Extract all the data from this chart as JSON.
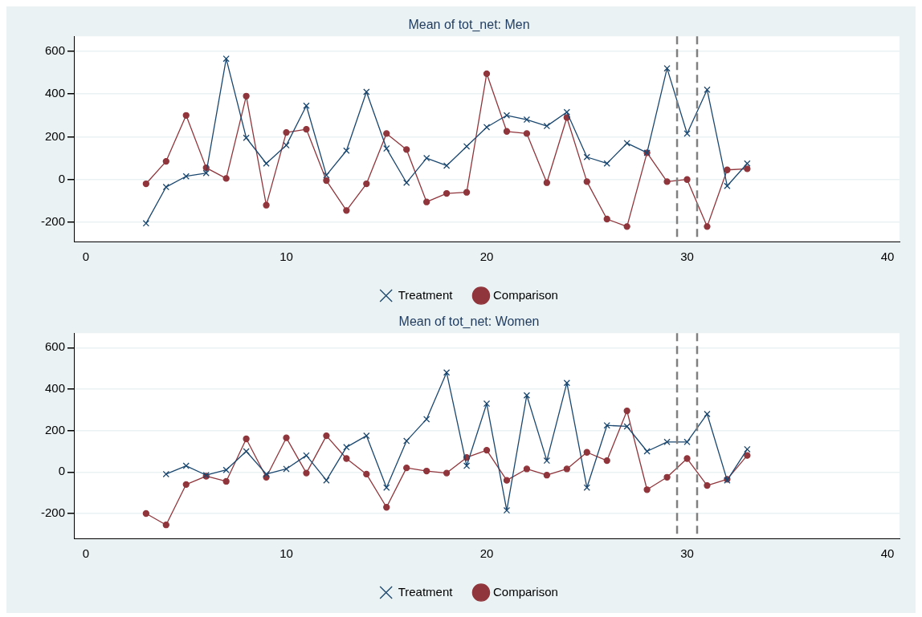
{
  "chart_data": [
    {
      "type": "line",
      "title": "Mean of tot_net: Men",
      "x": [
        3,
        4,
        5,
        6,
        7,
        8,
        9,
        10,
        11,
        12,
        13,
        14,
        15,
        16,
        17,
        18,
        19,
        20,
        21,
        22,
        23,
        24,
        25,
        26,
        27,
        28,
        29,
        30,
        31,
        32,
        33
      ],
      "series": [
        {
          "name": "Treatment",
          "color": "#1a476f",
          "marker": "cross",
          "values": [
            -205,
            -35,
            15,
            30,
            565,
            195,
            75,
            160,
            345,
            20,
            135,
            410,
            145,
            -15,
            100,
            65,
            155,
            245,
            300,
            280,
            250,
            315,
            105,
            75,
            170,
            125,
            520,
            215,
            420,
            -30,
            75
          ]
        },
        {
          "name": "Comparison",
          "color": "#90353b",
          "marker": "circle",
          "values": [
            -20,
            85,
            300,
            55,
            5,
            390,
            -120,
            220,
            235,
            -5,
            -145,
            -20,
            215,
            140,
            -105,
            -65,
            -60,
            495,
            225,
            215,
            -15,
            290,
            -10,
            -185,
            -220,
            125,
            -10,
            0,
            -220,
            45,
            50
          ]
        }
      ],
      "xlim": [
        -0.6,
        40.6
      ],
      "xticks": [
        0,
        10,
        20,
        30,
        40
      ],
      "ylim": [
        -290,
        670
      ],
      "yticks": [
        -200,
        0,
        200,
        400,
        600
      ],
      "grid": "y",
      "legend": "bottom",
      "line_style": "solid",
      "ref_lines": [
        {
          "axis": "x",
          "value": 29.5,
          "color": "#808080",
          "line_style": "dashed"
        },
        {
          "axis": "x",
          "value": 30.5,
          "color": "#808080",
          "line_style": "dashed"
        }
      ]
    },
    {
      "type": "line",
      "title": "Mean of tot_net: Women",
      "x": [
        3,
        4,
        5,
        6,
        7,
        8,
        9,
        10,
        11,
        12,
        13,
        14,
        15,
        16,
        17,
        18,
        19,
        20,
        21,
        22,
        23,
        24,
        25,
        26,
        27,
        28,
        29,
        30,
        31,
        32,
        33
      ],
      "series": [
        {
          "name": "Treatment",
          "color": "#1a476f",
          "marker": "cross",
          "values": [
            null,
            -10,
            30,
            -15,
            10,
            100,
            -10,
            15,
            80,
            -40,
            120,
            175,
            -75,
            150,
            255,
            480,
            30,
            330,
            -185,
            370,
            55,
            430,
            -75,
            225,
            220,
            100,
            145,
            145,
            280,
            -40,
            110
          ]
        },
        {
          "name": "Comparison",
          "color": "#90353b",
          "marker": "circle",
          "values": [
            -200,
            -255,
            -60,
            -20,
            -45,
            160,
            -25,
            165,
            -5,
            175,
            65,
            -10,
            -170,
            20,
            5,
            -5,
            70,
            105,
            -40,
            15,
            -15,
            15,
            95,
            55,
            295,
            -85,
            -25,
            65,
            -65,
            -35,
            80
          ]
        }
      ],
      "xlim": [
        -0.6,
        40.6
      ],
      "xticks": [
        0,
        10,
        20,
        30,
        40
      ],
      "ylim": [
        -320,
        670
      ],
      "yticks": [
        -200,
        0,
        200,
        400,
        600
      ],
      "grid": "y",
      "legend": "bottom",
      "line_style": "solid",
      "ref_lines": [
        {
          "axis": "x",
          "value": 29.5,
          "color": "#808080",
          "line_style": "dashed"
        },
        {
          "axis": "x",
          "value": 30.5,
          "color": "#808080",
          "line_style": "dashed"
        }
      ]
    }
  ]
}
